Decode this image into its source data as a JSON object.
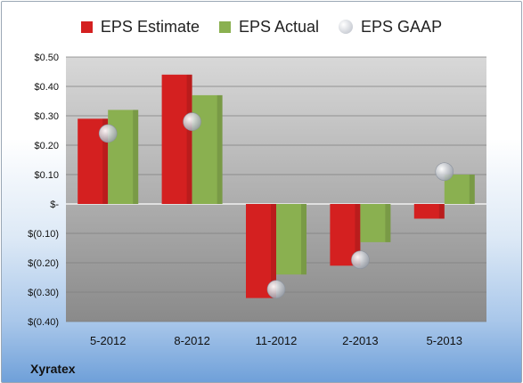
{
  "chart_data": {
    "type": "bar",
    "categories": [
      "5-2012",
      "8-2012",
      "11-2012",
      "2-2013",
      "5-2013"
    ],
    "series": [
      {
        "name": "EPS Estimate",
        "kind": "bar",
        "color": "#d42020",
        "values": [
          0.29,
          0.44,
          -0.32,
          -0.21,
          -0.05
        ]
      },
      {
        "name": "EPS Actual",
        "kind": "bar",
        "color": "#8ab050",
        "values": [
          0.32,
          0.37,
          -0.24,
          -0.13,
          0.1
        ]
      },
      {
        "name": "EPS GAAP",
        "kind": "marker",
        "color": "#c8ccd4",
        "values": [
          0.24,
          0.28,
          -0.29,
          -0.19,
          0.11
        ]
      }
    ],
    "ylim": [
      -0.4,
      0.5
    ],
    "yticks": [
      {
        "value": 0.5,
        "label": "$0.50"
      },
      {
        "value": 0.4,
        "label": "$0.40"
      },
      {
        "value": 0.3,
        "label": "$0.30"
      },
      {
        "value": 0.2,
        "label": "$0.20"
      },
      {
        "value": 0.1,
        "label": "$0.10"
      },
      {
        "value": 0.0,
        "label": "$-"
      },
      {
        "value": -0.1,
        "label": "$(0.10)"
      },
      {
        "value": -0.2,
        "label": "$(0.20)"
      },
      {
        "value": -0.3,
        "label": "$(0.30)"
      },
      {
        "value": -0.4,
        "label": "$(0.40)"
      }
    ],
    "grid": true,
    "legend_position": "top"
  },
  "company_label": "Xyratex"
}
